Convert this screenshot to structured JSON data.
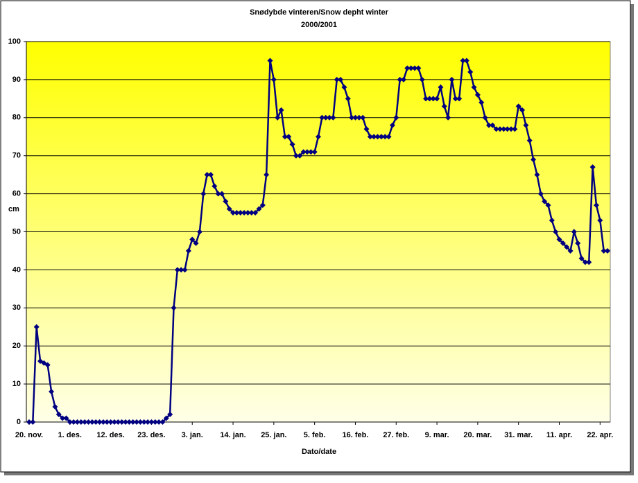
{
  "chart_data": {
    "type": "line",
    "title": "Snødybde vinteren/Snow depht winter",
    "subtitle": "2000/2001",
    "x_label": "Dato/date",
    "y_label": "cm",
    "categories": [
      "20. nov.",
      null,
      null,
      null,
      null,
      null,
      null,
      null,
      null,
      null,
      null,
      "1. des.",
      null,
      null,
      null,
      null,
      null,
      null,
      null,
      null,
      null,
      null,
      "12. des.",
      null,
      null,
      null,
      null,
      null,
      null,
      null,
      null,
      null,
      null,
      "23. des.",
      null,
      null,
      null,
      null,
      null,
      null,
      null,
      null,
      null,
      null,
      "3. jan.",
      null,
      null,
      null,
      null,
      null,
      null,
      null,
      null,
      null,
      null,
      "14. jan.",
      null,
      null,
      null,
      null,
      null,
      null,
      null,
      null,
      null,
      null,
      "25. jan.",
      null,
      null,
      null,
      null,
      null,
      null,
      null,
      null,
      null,
      null,
      "5. feb.",
      null,
      null,
      null,
      null,
      null,
      null,
      null,
      null,
      null,
      null,
      "16. feb.",
      null,
      null,
      null,
      null,
      null,
      null,
      null,
      null,
      null,
      null,
      "27. feb.",
      null,
      null,
      null,
      null,
      null,
      null,
      null,
      null,
      null,
      null,
      "9. mar.",
      null,
      null,
      null,
      null,
      null,
      null,
      null,
      null,
      null,
      null,
      "20. mar.",
      null,
      null,
      null,
      null,
      null,
      null,
      null,
      null,
      null,
      null,
      "31. mar.",
      null,
      null,
      null,
      null,
      null,
      null,
      null,
      null,
      null,
      null,
      "11. apr.",
      null,
      null,
      null,
      null,
      null,
      null,
      null,
      null,
      null,
      null,
      "22. apr.",
      null,
      null
    ],
    "values": [
      0,
      0,
      25,
      16,
      15.5,
      15,
      8,
      4,
      2,
      1,
      1,
      0,
      0,
      0,
      0,
      0,
      0,
      0,
      0,
      0,
      0,
      0,
      0,
      0,
      0,
      0,
      0,
      0,
      0,
      0,
      0,
      0,
      0,
      0,
      0,
      0,
      0,
      1,
      2,
      30,
      40,
      40,
      40,
      45,
      48,
      47,
      50,
      60,
      65,
      65,
      62,
      60,
      60,
      58,
      56,
      55,
      55,
      55,
      55,
      55,
      55,
      55,
      56,
      57,
      65,
      95,
      90,
      80,
      82,
      75,
      75,
      73,
      70,
      70,
      71,
      71,
      71,
      71,
      75,
      80,
      80,
      80,
      80,
      90,
      90,
      88,
      85,
      80,
      80,
      80,
      80,
      77,
      75,
      75,
      75,
      75,
      75,
      75,
      78,
      80,
      90,
      90,
      93,
      93,
      93,
      93,
      90,
      85,
      85,
      85,
      85,
      88,
      83,
      80,
      90,
      85,
      85,
      95,
      95,
      92,
      88,
      86,
      84,
      80,
      78,
      78,
      77,
      77,
      77,
      77,
      77,
      77,
      83,
      82,
      78,
      74,
      69,
      65,
      60,
      58,
      57,
      53,
      50,
      48,
      47,
      46,
      45,
      50,
      47,
      43,
      42,
      42,
      67,
      57,
      53,
      45,
      45
    ],
    "color": "#000080",
    "ylim": [
      0,
      100
    ],
    "yticks": [
      0,
      10,
      20,
      30,
      40,
      50,
      60,
      70,
      80,
      90,
      100
    ],
    "grid": true
  }
}
